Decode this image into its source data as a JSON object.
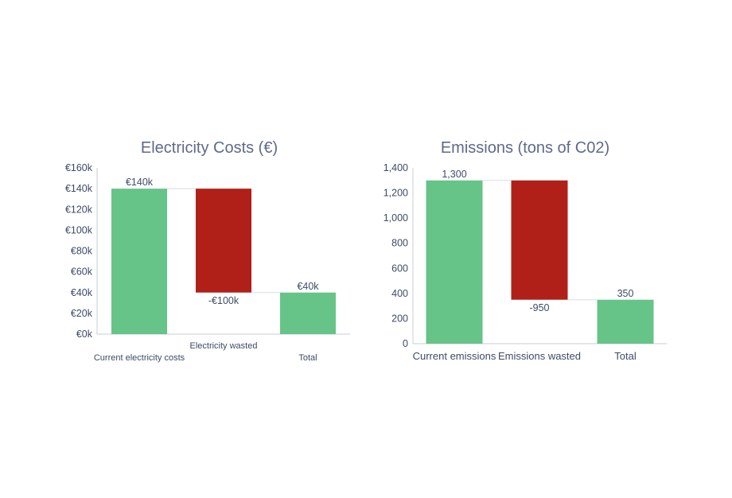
{
  "colors": {
    "positive": "#66c488",
    "negative": "#b02018",
    "text": "#3f4a66",
    "title": "#5f6a8a"
  },
  "chart_data": [
    {
      "type": "bar",
      "variant": "waterfall",
      "title": "Electricity Costs (€)",
      "categories": [
        "Current electricity costs",
        "Electricity wasted",
        "Total"
      ],
      "values": [
        140000,
        -100000,
        40000
      ],
      "bar_types": [
        "total",
        "delta",
        "total"
      ],
      "data_labels": [
        "€140k",
        "-€100k",
        "€40k"
      ],
      "ylim": [
        0,
        160000
      ],
      "yticks": [
        0,
        20000,
        40000,
        60000,
        80000,
        100000,
        120000,
        140000,
        160000
      ],
      "ytick_labels": [
        "€0k",
        "€20k",
        "€40k",
        "€60k",
        "€80k",
        "€100k",
        "€120k",
        "€140k",
        "€160k"
      ],
      "category_label_rows": [
        0,
        1,
        0
      ],
      "grid": false,
      "legend": "none"
    },
    {
      "type": "bar",
      "variant": "waterfall",
      "title": "Emissions (tons of C02)",
      "categories": [
        "Current emissions",
        "Emissions wasted",
        "Total"
      ],
      "values": [
        1300,
        -950,
        350
      ],
      "bar_types": [
        "total",
        "delta",
        "total"
      ],
      "data_labels": [
        "1,300",
        "-950",
        "350"
      ],
      "ylim": [
        0,
        1400
      ],
      "yticks": [
        0,
        200,
        400,
        600,
        800,
        1000,
        1200,
        1400
      ],
      "ytick_labels": [
        "0",
        "200",
        "400",
        "600",
        "800",
        "1,000",
        "1,200",
        "1,400"
      ],
      "category_label_rows": [
        0,
        0,
        0
      ],
      "grid": false,
      "legend": "none"
    }
  ]
}
